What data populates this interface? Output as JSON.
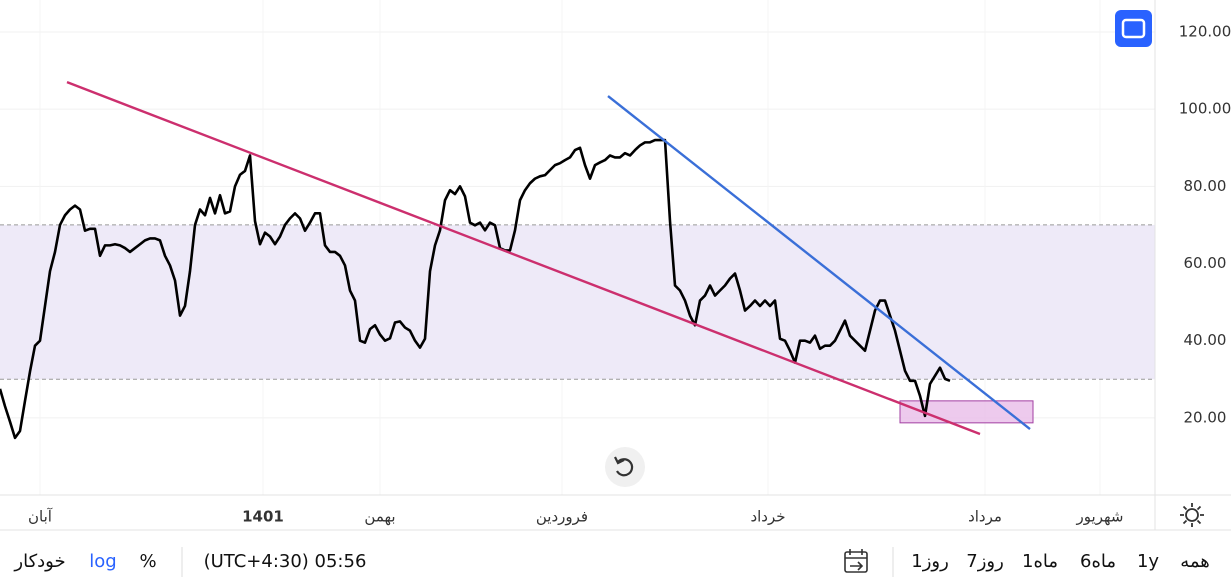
{
  "chart_data": {
    "type": "line",
    "series": [
      {
        "name": null,
        "color": "#000000",
        "values": [
          27.5,
          23,
          19,
          14.8,
          16.6,
          24.4,
          32,
          38.7,
          40,
          49,
          58,
          63,
          70,
          72.5,
          74,
          75,
          74,
          68.5,
          69,
          69,
          62,
          64.7,
          64.7,
          65,
          64.7,
          64,
          63,
          64,
          65,
          66,
          66.5,
          66.5,
          66,
          62,
          59.5,
          55.6,
          46.5,
          49,
          58,
          70,
          74,
          72.5,
          77,
          73,
          77.7,
          73,
          73.5,
          80,
          83,
          84,
          88,
          71,
          65,
          68,
          67,
          65,
          67,
          70,
          71.7,
          73,
          71.7,
          68.5,
          70.6,
          73,
          73,
          64.7,
          63,
          63,
          62,
          59.5,
          53,
          50.4,
          40,
          39.5,
          43,
          44,
          41.6,
          40,
          40.6,
          44.7,
          45,
          43.4,
          42.6,
          40,
          38.2,
          40.5,
          58,
          64.7,
          68.6,
          76.4,
          79,
          78,
          80,
          77.4,
          70.6,
          69.9,
          70.6,
          68.6,
          70.6,
          69.9,
          64,
          63.4,
          63.4,
          68.6,
          76.4,
          79,
          80.8,
          82,
          82.6,
          82.9,
          84.2,
          85.5,
          86,
          86.8,
          87.5,
          89.4,
          90,
          85.5,
          82,
          85.5,
          86.2,
          86.8,
          88,
          87.5,
          87.5,
          88.6,
          88,
          89.4,
          90.6,
          91.4,
          91.4,
          92,
          92,
          92,
          71,
          54.3,
          53,
          50.4,
          46.5,
          44,
          50.4,
          51.7,
          54.3,
          51.7,
          53,
          54.3,
          56.1,
          57.4,
          53,
          47.8,
          49,
          50.4,
          49,
          50.4,
          49,
          50.4,
          40.5,
          40,
          37.4,
          34.3,
          40,
          40,
          39.5,
          41.3,
          37.9,
          38.7,
          38.7,
          40,
          42.6,
          45.2,
          41.3,
          40,
          38.7,
          37.4,
          42.6,
          47.8,
          50.4,
          50.4,
          46.5,
          42.6,
          37.4,
          32.2,
          29.6,
          29.6,
          25.7,
          20.5,
          28.8,
          30.9,
          33,
          30.1,
          29.6
        ]
      }
    ],
    "xlim": [
      0,
      231
    ],
    "ylim": [
      0,
      128.3
    ],
    "yticks": [
      {
        "value": 20,
        "label": "20.00"
      },
      {
        "value": 40,
        "label": "40.00"
      },
      {
        "value": 60,
        "label": "60.00"
      },
      {
        "value": 80,
        "label": "80.00"
      },
      {
        "value": 100,
        "label": "100.00"
      },
      {
        "value": 120,
        "label": "120.00"
      }
    ],
    "xticks": [
      {
        "value": 8,
        "label": "آبان"
      },
      {
        "value": 52.6,
        "label": "1401"
      },
      {
        "value": 76,
        "label": "بهمن"
      },
      {
        "value": 112.4,
        "label": "فروردین"
      },
      {
        "value": 153.6,
        "label": "خرداد"
      },
      {
        "value": 197,
        "label": "مرداد"
      },
      {
        "value": 220,
        "label": "شهریور"
      }
    ],
    "grid": true,
    "band": {
      "from": 30,
      "to": 70,
      "color": "#eeeaf8"
    },
    "trend_lines": [
      {
        "color": "#cc2f6e",
        "x": [
          13.4,
          196
        ],
        "y": [
          107,
          15.8
        ]
      },
      {
        "color": "#3a6fd8",
        "x": [
          121.6,
          206
        ],
        "y": [
          103.4,
          17.1
        ]
      }
    ],
    "box": {
      "x": [
        180,
        206.6
      ],
      "y": [
        18.7,
        24.4
      ],
      "color": "#e8bde8"
    }
  },
  "toolbar": {
    "ranges": [
      "همه",
      "1y",
      "6ماه",
      "1ماه",
      "7روز",
      "1روز"
    ],
    "time": "(UTC+4:30) 05:56",
    "percent": "%",
    "log": "log",
    "auto": "خودکار"
  }
}
